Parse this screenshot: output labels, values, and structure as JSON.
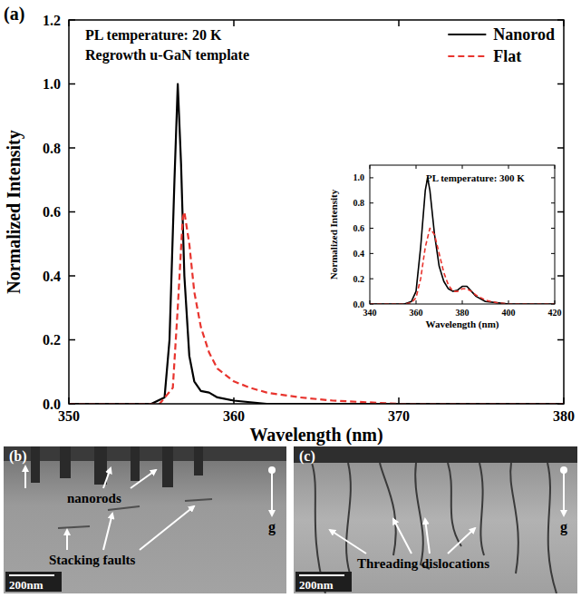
{
  "chart_data": [
    {
      "type": "line",
      "label": "(a)",
      "annotations": [
        "PL temperature: 20 K",
        "Regrowth u-GaN template"
      ],
      "x_label": "Wavelength (nm)",
      "y_label": "Normalized Intensity",
      "xlim": [
        350,
        380
      ],
      "xticks": [
        350,
        360,
        370,
        380
      ],
      "ylim": [
        0,
        1.2
      ],
      "yticks": [
        {
          "value": 0,
          "label": "0.0"
        },
        0.2,
        0.4,
        0.6,
        0.8,
        {
          "value": 1,
          "label": "1.0"
        },
        1.2
      ],
      "grid": false,
      "legend": "upper right",
      "series": [
        {
          "name": "Nanorod",
          "color": "#000000",
          "line_style": "solid",
          "x": [
            350,
            355,
            355.8,
            356.1,
            356.4,
            356.6,
            356.8,
            357.0,
            357.3,
            357.6,
            358.0,
            358.5,
            359.0,
            360.0,
            362.0,
            380.0
          ],
          "values": [
            0,
            0,
            0.02,
            0.2,
            0.7,
            1.0,
            0.75,
            0.4,
            0.15,
            0.07,
            0.04,
            0.035,
            0.02,
            0.01,
            0,
            0
          ]
        },
        {
          "name": "Flat",
          "color": "#e8342e",
          "line_style": "dashed",
          "x": [
            350,
            355.5,
            356.3,
            356.6,
            356.9,
            357.0,
            357.3,
            357.6,
            358.0,
            358.5,
            359.0,
            360.0,
            361.0,
            362.0,
            364.0,
            366.0,
            368.0,
            370.0,
            380.0
          ],
          "values": [
            0,
            0,
            0.05,
            0.3,
            0.58,
            0.6,
            0.5,
            0.35,
            0.24,
            0.16,
            0.11,
            0.07,
            0.05,
            0.035,
            0.02,
            0.01,
            0.005,
            0,
            0
          ]
        }
      ]
    },
    {
      "type": "line",
      "title": "PL temperature: 300 K",
      "x_label": "Wavelength (nm)",
      "y_label": "Normalized Intensity",
      "xlim": [
        340,
        420
      ],
      "xticks": [
        340,
        360,
        380,
        400,
        420
      ],
      "ylim": [
        0,
        1.1
      ],
      "yticks": [
        {
          "value": 0,
          "label": "0.0"
        },
        0.2,
        0.4,
        0.6,
        0.8,
        {
          "value": 1,
          "label": "1.0"
        }
      ],
      "grid": false,
      "series": [
        {
          "color": "#000000",
          "line_style": "solid",
          "x": [
            340,
            355,
            358,
            360,
            362,
            364,
            365,
            366,
            368,
            370,
            372,
            374,
            376,
            378,
            380,
            382,
            384,
            386,
            390,
            395,
            400,
            420
          ],
          "values": [
            0,
            0,
            0.02,
            0.1,
            0.45,
            0.9,
            1.0,
            0.9,
            0.55,
            0.3,
            0.18,
            0.12,
            0.1,
            0.11,
            0.14,
            0.14,
            0.1,
            0.06,
            0.02,
            0.01,
            0,
            0
          ]
        },
        {
          "color": "#e8342e",
          "line_style": "dashed",
          "x": [
            340,
            355,
            358,
            360,
            362,
            364,
            366,
            368,
            370,
            372,
            374,
            376,
            378,
            380,
            382,
            384,
            386,
            390,
            395,
            400,
            420
          ],
          "values": [
            0,
            0,
            0.01,
            0.05,
            0.2,
            0.45,
            0.6,
            0.55,
            0.4,
            0.25,
            0.15,
            0.1,
            0.1,
            0.12,
            0.12,
            0.1,
            0.07,
            0.03,
            0.01,
            0,
            0
          ]
        }
      ]
    }
  ],
  "images": [
    {
      "label": "(b)",
      "annotations": [
        "nanorods",
        "Stacking faults"
      ],
      "g": "g",
      "scale_bar": "200nm"
    },
    {
      "label": "(c)",
      "annotations": [
        "Threading dislocations"
      ],
      "g": "g",
      "scale_bar": "200nm"
    }
  ]
}
